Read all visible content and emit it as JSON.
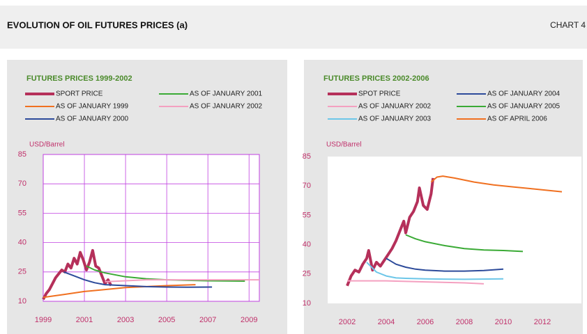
{
  "page_title": "EVOLUTION OF OIL FUTURES PRICES (a)",
  "chart_label": "CHART 4",
  "chart_data": [
    {
      "type": "line",
      "title": "FUTURES PRICES 1999-2002",
      "y_label": "USD/Barrel",
      "xlim": [
        1999,
        2009.5
      ],
      "xticks": [
        1999,
        2001,
        2003,
        2005,
        2007,
        2009
      ],
      "ylim": [
        10,
        85
      ],
      "yticks": [
        10,
        25,
        40,
        55,
        70,
        85
      ],
      "grid": true,
      "series": [
        {
          "name": "SPORT PRICE",
          "color": "#b5305a",
          "x": [
            1999.0,
            1999.15,
            1999.3,
            1999.45,
            1999.6,
            1999.75,
            1999.9,
            2000.05,
            2000.2,
            2000.35,
            2000.5,
            2000.65,
            2000.8,
            2000.95,
            2001.1,
            2001.25,
            2001.4,
            2001.55,
            2001.7,
            2001.85,
            2002.0,
            2002.15,
            2002.3
          ],
          "values": [
            11,
            14,
            16,
            19,
            22,
            24,
            26,
            25,
            29,
            27,
            32,
            29,
            35,
            31,
            26,
            30,
            36,
            28,
            27,
            23,
            19,
            21,
            18
          ]
        },
        {
          "name": "AS OF JANUARY 1999",
          "color": "#f07020",
          "x": [
            1999.0,
            2000.0,
            2001.0,
            2002.0,
            2003.0,
            2004.0,
            2005.0,
            2006.4
          ],
          "values": [
            12,
            13.5,
            15,
            16,
            17,
            17.5,
            18,
            18.5
          ]
        },
        {
          "name": "AS OF JANUARY 2000",
          "color": "#2c4a9a",
          "x": [
            2000.0,
            2000.5,
            2001.0,
            2001.5,
            2002.0,
            2003.0,
            2004.0,
            2005.0,
            2006.0,
            2007.2
          ],
          "values": [
            25,
            23,
            21,
            19.5,
            18.5,
            18,
            17.5,
            17.3,
            17.2,
            17.3
          ]
        },
        {
          "name": "AS OF JANUARY 2001",
          "color": "#3aaa35",
          "x": [
            2001.1,
            2001.5,
            2002.0,
            2003.0,
            2004.0,
            2005.0,
            2006.0,
            2007.0,
            2008.8
          ],
          "values": [
            28,
            26,
            24.5,
            22.5,
            21.5,
            21,
            20.7,
            20.5,
            20.3
          ]
        },
        {
          "name": "AS OF JANUARY 2002",
          "color": "#f4a0c0",
          "x": [
            2002.0,
            2003.0,
            2004.0,
            2005.0,
            2006.0,
            2007.0,
            2008.0,
            2009.5
          ],
          "values": [
            20,
            20.5,
            21,
            21,
            21,
            21,
            21,
            21
          ]
        }
      ]
    },
    {
      "type": "line",
      "title": "FUTURES PRICES 2002-2006",
      "y_label": "USD/Barrel",
      "xlim": [
        2001,
        2014
      ],
      "xticks": [
        2002,
        2004,
        2006,
        2008,
        2010,
        2012
      ],
      "ylim": [
        10,
        85
      ],
      "yticks": [
        10,
        25,
        40,
        55,
        70,
        85
      ],
      "grid": false,
      "series": [
        {
          "name": "SPOT PRICE",
          "color": "#b5305a",
          "x": [
            2002.0,
            2002.2,
            2002.4,
            2002.6,
            2002.8,
            2003.0,
            2003.1,
            2003.3,
            2003.5,
            2003.7,
            2003.9,
            2004.1,
            2004.3,
            2004.5,
            2004.7,
            2004.9,
            2005.0,
            2005.2,
            2005.4,
            2005.6,
            2005.7,
            2005.9,
            2006.1,
            2006.3,
            2006.4
          ],
          "values": [
            19,
            24,
            27,
            26,
            30,
            33,
            37,
            27,
            31,
            29,
            32,
            35,
            38,
            42,
            47,
            52,
            46,
            54,
            57,
            62,
            69,
            60,
            58,
            66,
            74
          ]
        },
        {
          "name": "AS OF JANUARY 2002",
          "color": "#f4a0c0",
          "x": [
            2002.0,
            2004.0,
            2006.0,
            2008.0,
            2009.0
          ],
          "values": [
            21.5,
            21.5,
            21,
            20.5,
            20
          ]
        },
        {
          "name": "AS OF JANUARY 2003",
          "color": "#6cc6e8",
          "x": [
            2003.0,
            2003.5,
            2004.0,
            2004.5,
            2005.0,
            2006.0,
            2008.0,
            2010.0
          ],
          "values": [
            31,
            26,
            24,
            23,
            22.8,
            22.5,
            22.3,
            22.5
          ]
        },
        {
          "name": "AS OF JANUARY 2004",
          "color": "#2c4a9a",
          "x": [
            2004.0,
            2004.5,
            2005.0,
            2005.5,
            2006.0,
            2007.0,
            2008.0,
            2009.0,
            2010.0
          ],
          "values": [
            33,
            30,
            28.5,
            27.5,
            27,
            26.5,
            26.5,
            26.8,
            27.5
          ]
        },
        {
          "name": "AS OF JANUARY 2005",
          "color": "#3aaa35",
          "x": [
            2005.0,
            2005.5,
            2006.0,
            2007.0,
            2008.0,
            2009.0,
            2010.0,
            2011.0
          ],
          "values": [
            45,
            43,
            41.5,
            39.5,
            38,
            37.3,
            37,
            36.5
          ]
        },
        {
          "name": "AS OF APRIL 2006",
          "color": "#f07020",
          "x": [
            2006.3,
            2006.6,
            2006.9,
            2007.5,
            2008.5,
            2009.5,
            2010.5,
            2011.5,
            2013.0
          ],
          "values": [
            72,
            74.5,
            75,
            74,
            72,
            70.5,
            69.5,
            68.5,
            67
          ]
        }
      ]
    }
  ]
}
